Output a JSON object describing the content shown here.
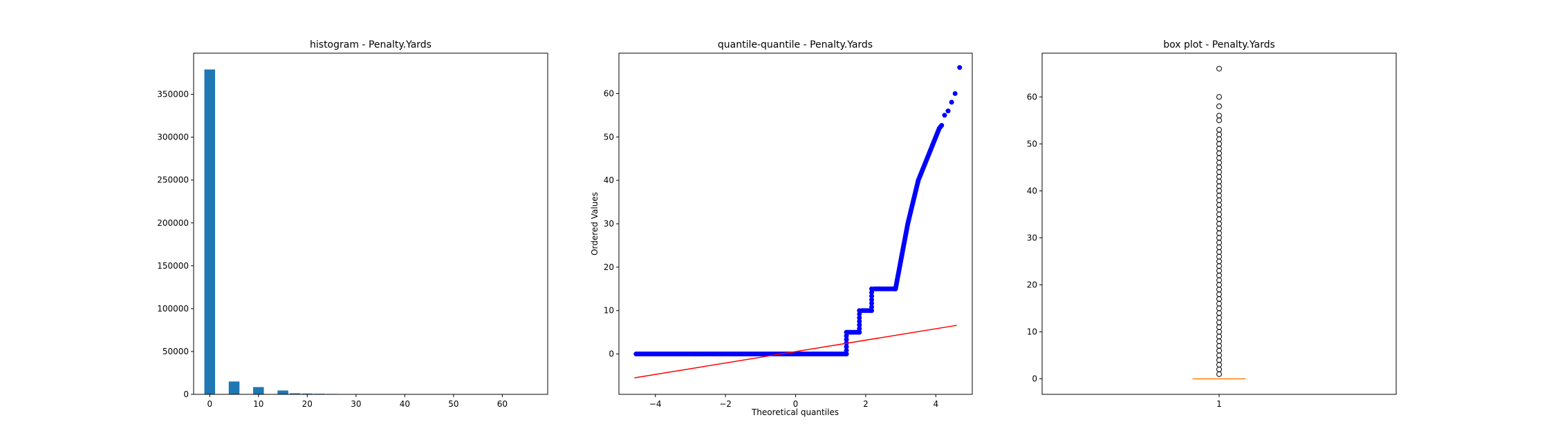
{
  "chart_data": [
    {
      "type": "bar",
      "title": "histogram - Penalty.Yards",
      "xlabel": "",
      "ylabel": "",
      "xlim": [
        -3.3,
        69.3
      ],
      "ylim": [
        0,
        398000
      ],
      "bin_width": 2.2,
      "bins": [
        {
          "x": 0,
          "value": 379000
        },
        {
          "x": 5,
          "value": 15000
        },
        {
          "x": 10,
          "value": 8500
        },
        {
          "x": 15,
          "value": 4500
        },
        {
          "x": 17.5,
          "value": 1200
        },
        {
          "x": 20,
          "value": 900
        },
        {
          "x": 22.5,
          "value": 700
        },
        {
          "x": 25,
          "value": 500
        },
        {
          "x": 28,
          "value": 200
        },
        {
          "x": 32,
          "value": 150
        },
        {
          "x": 36,
          "value": 100
        },
        {
          "x": 40,
          "value": 80
        },
        {
          "x": 45,
          "value": 50
        },
        {
          "x": 50,
          "value": 30
        },
        {
          "x": 55,
          "value": 15
        },
        {
          "x": 60,
          "value": 8
        },
        {
          "x": 65,
          "value": 3
        }
      ],
      "x_ticks": [
        0,
        10,
        20,
        30,
        40,
        50,
        60
      ],
      "y_ticks": [
        0,
        50000,
        100000,
        150000,
        200000,
        250000,
        300000,
        350000
      ],
      "colors": {
        "bar": "#1f77b4"
      }
    },
    {
      "type": "scatter",
      "title": "quantile-quantile - Penalty.Yards",
      "xlabel": "Theoretical quantiles",
      "ylabel": "Ordered Values",
      "xlim": [
        -5.04,
        5.04
      ],
      "ylim": [
        -9.3,
        69.3
      ],
      "x_ticks": [
        -4,
        -2,
        0,
        2,
        4
      ],
      "y_ticks": [
        0,
        10,
        20,
        30,
        40,
        50,
        60
      ],
      "segments": [
        {
          "y": 0,
          "x_start": -4.5,
          "x_end": 1.45
        },
        {
          "y": 5,
          "x_start": 1.5,
          "x_end": 1.8
        },
        {
          "y": 10,
          "x_start": 1.9,
          "x_end": 2.15
        },
        {
          "y": 15,
          "x_start": 2.25,
          "x_end": 2.85
        }
      ],
      "jumps": [
        {
          "x": 1.45,
          "y_from": 0,
          "y_to": 5
        },
        {
          "x": 1.82,
          "y_from": 5,
          "y_to": 10
        },
        {
          "x": 2.17,
          "y_from": 10,
          "y_to": 15
        }
      ],
      "tail_curve": [
        [
          2.85,
          15
        ],
        [
          3.2,
          30
        ],
        [
          3.5,
          40
        ],
        [
          3.8,
          46
        ],
        [
          4.0,
          50
        ],
        [
          4.1,
          52
        ],
        [
          4.2,
          53
        ]
      ],
      "extreme_points": [
        [
          -4.55,
          0
        ],
        [
          4.25,
          55
        ],
        [
          4.35,
          56
        ],
        [
          4.45,
          58
        ],
        [
          4.55,
          60
        ],
        [
          4.68,
          66
        ]
      ],
      "fit_line": {
        "x": [
          -4.6,
          4.6
        ],
        "y": [
          -5.5,
          6.6
        ]
      },
      "colors": {
        "points": "#0000ff",
        "fit_line": "#ff0000"
      }
    },
    {
      "type": "box",
      "title": "box plot - Penalty.Yards",
      "xlabel": "",
      "ylabel": "",
      "xlim": [
        0.5,
        1.5
      ],
      "ylim": [
        -3.3,
        69.3
      ],
      "x_ticks": [
        1
      ],
      "y_ticks": [
        0,
        10,
        20,
        30,
        40,
        50,
        60
      ],
      "box": {
        "q1": 0,
        "median": 0,
        "q3": 0,
        "whisker_low": 0,
        "whisker_high": 0
      },
      "outliers": [
        1,
        2,
        3,
        4,
        5,
        6,
        7,
        8,
        9,
        10,
        11,
        12,
        13,
        14,
        15,
        16,
        17,
        18,
        19,
        20,
        21,
        22,
        23,
        24,
        25,
        26,
        27,
        28,
        29,
        30,
        31,
        32,
        33,
        34,
        35,
        36,
        37,
        38,
        39,
        40,
        41,
        42,
        43,
        44,
        45,
        46,
        47,
        48,
        49,
        50,
        51,
        52,
        53,
        55,
        56,
        58,
        60,
        66
      ],
      "colors": {
        "median": "#ff7f0e",
        "outlier_edge": "#000000"
      }
    }
  ]
}
